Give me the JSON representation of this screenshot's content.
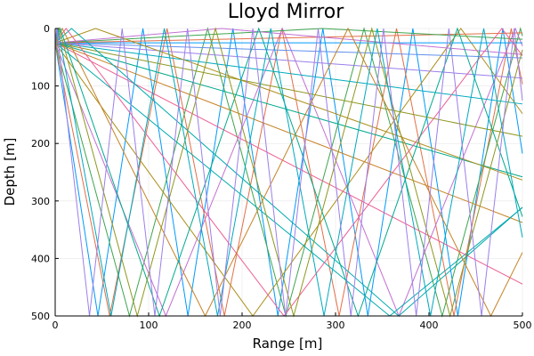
{
  "chart_data": {
    "type": "line",
    "title": "Lloyd Mirror",
    "xlabel": "Range [m]",
    "ylabel": "Depth [m]",
    "xlim": [
      0,
      500
    ],
    "ylim": [
      0,
      500
    ],
    "y_inverted": true,
    "xticks": [
      0,
      100,
      200,
      300,
      400,
      500
    ],
    "yticks": [
      0,
      100,
      200,
      300,
      400,
      500
    ],
    "grid": true,
    "legend": "none",
    "source_depth": 25,
    "palette": [
      "#009AFA",
      "#E36F47",
      "#3EA44E",
      "#C371D2",
      "#AC8E18",
      "#00AAAE",
      "#ED5E93",
      "#C68225",
      "#00A98D",
      "#8E971E",
      "#00A9BE",
      "#9B7FE9",
      "#618FEC"
    ],
    "rays": [
      {
        "angle_deg": 84.5,
        "bounces": 6
      },
      {
        "angle_deg": 83.0,
        "bounces": 5
      },
      {
        "angle_deg": 80.5,
        "bounces": 4
      },
      {
        "angle_deg": 76.0,
        "bounces": 3
      },
      {
        "angle_deg": 66.0,
        "bounces": 2
      },
      {
        "angle_deg": 53.0,
        "bounces": 1
      },
      {
        "angle_deg": 40.0,
        "bounces": 1
      },
      {
        "angle_deg": 32.0,
        "bounces": 1
      },
      {
        "angle_deg": 25.0,
        "bounces": 0
      },
      {
        "angle_deg": 18.0,
        "bounces": 0
      },
      {
        "angle_deg": 12.0,
        "bounces": 0
      },
      {
        "angle_deg": 7.0,
        "bounces": 0
      },
      {
        "angle_deg": 3.0,
        "bounces": 0
      },
      {
        "angle_deg": 0.0,
        "bounces": 0
      },
      {
        "angle_deg": -2.0,
        "bounces": 0
      },
      {
        "angle_deg": -5.0,
        "bounces": 0
      },
      {
        "angle_deg": -8.0,
        "bounces": 0
      },
      {
        "angle_deg": -30.0,
        "bounces": 1
      },
      {
        "angle_deg": -55.0,
        "bounces": 1
      },
      {
        "angle_deg": -65.0,
        "bounces": 2
      },
      {
        "angle_deg": -73.0,
        "bounces": 2
      },
      {
        "angle_deg": -78.0,
        "bounces": 3
      },
      {
        "angle_deg": -80.5,
        "bounces": 4
      },
      {
        "angle_deg": -83.5,
        "bounces": 5
      },
      {
        "angle_deg": -86.0,
        "bounces": 6
      }
    ]
  }
}
